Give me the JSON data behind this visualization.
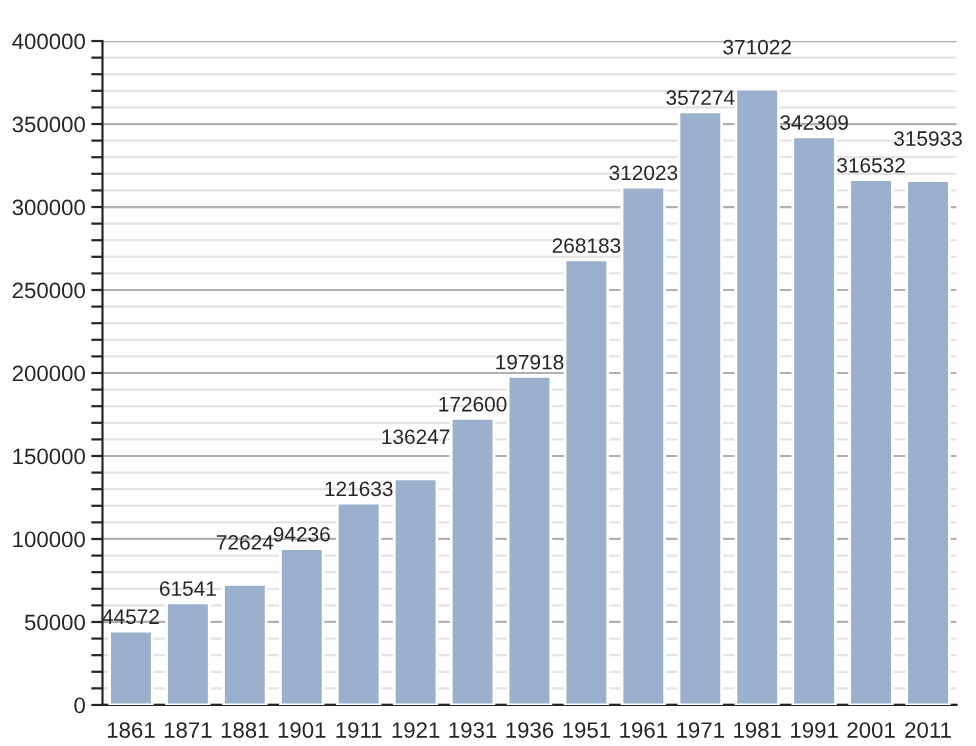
{
  "chart_data": {
    "type": "bar",
    "categories": [
      "1861",
      "1871",
      "1881",
      "1901",
      "1911",
      "1921",
      "1931",
      "1936",
      "1951",
      "1961",
      "1971",
      "1981",
      "1991",
      "2001",
      "2011"
    ],
    "values": [
      44572,
      61541,
      72624,
      94236,
      121633,
      136247,
      172600,
      197918,
      268183,
      312023,
      357274,
      371022,
      342309,
      316532,
      315933
    ],
    "color": "#9ab0cc",
    "data_labels": true,
    "ylim": [
      0,
      400000
    ],
    "yticks": [
      0,
      {
        "value": 10000,
        "label": null
      },
      {
        "value": 20000,
        "label": null
      },
      {
        "value": 30000,
        "label": null
      },
      {
        "value": 40000,
        "label": null
      },
      50000,
      {
        "value": 60000,
        "label": null
      },
      {
        "value": 70000,
        "label": null
      },
      {
        "value": 80000,
        "label": null
      },
      {
        "value": 90000,
        "label": null
      },
      100000,
      {
        "value": 110000,
        "label": null
      },
      {
        "value": 120000,
        "label": null
      },
      {
        "value": 130000,
        "label": null
      },
      {
        "value": 140000,
        "label": null
      },
      150000,
      {
        "value": 160000,
        "label": null
      },
      {
        "value": 170000,
        "label": null
      },
      {
        "value": 180000,
        "label": null
      },
      {
        "value": 190000,
        "label": null
      },
      200000,
      {
        "value": 210000,
        "label": null
      },
      {
        "value": 220000,
        "label": null
      },
      {
        "value": 230000,
        "label": null
      },
      {
        "value": 240000,
        "label": null
      },
      250000,
      {
        "value": 260000,
        "label": null
      },
      {
        "value": 270000,
        "label": null
      },
      {
        "value": 280000,
        "label": null
      },
      {
        "value": 290000,
        "label": null
      },
      300000,
      {
        "value": 310000,
        "label": null
      },
      {
        "value": 320000,
        "label": null
      },
      {
        "value": 330000,
        "label": null
      },
      {
        "value": 340000,
        "label": null
      },
      350000,
      {
        "value": 360000,
        "label": null
      },
      {
        "value": 370000,
        "label": null
      },
      {
        "value": 380000,
        "label": null
      },
      {
        "value": 390000,
        "label": null
      },
      400000
    ],
    "grid": "y"
  }
}
